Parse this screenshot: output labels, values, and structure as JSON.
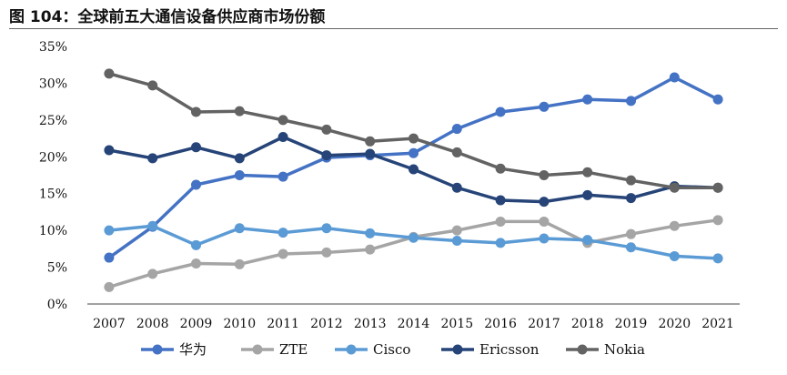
{
  "figure": {
    "title": "图 104：全球前五大通信设备供应商市场份额"
  },
  "chart_data": {
    "type": "line",
    "title": "",
    "xlabel": "",
    "ylabel": "",
    "categories": [
      "2007",
      "2008",
      "2009",
      "2010",
      "2011",
      "2012",
      "2013",
      "2014",
      "2015",
      "2016",
      "2017",
      "2018",
      "2019",
      "2020",
      "2021"
    ],
    "ylim": [
      0,
      35
    ],
    "y_ticks": [
      "0%",
      "5%",
      "10%",
      "15%",
      "20%",
      "25%",
      "30%",
      "35%"
    ],
    "y_tick_values": [
      0,
      5,
      10,
      15,
      20,
      25,
      30,
      35
    ],
    "grid": false,
    "legend_position": "bottom",
    "series": [
      {
        "name": "华为",
        "color": "#4472c4",
        "values": [
          6.3,
          10.5,
          16.2,
          17.5,
          17.3,
          19.9,
          20.2,
          20.5,
          23.8,
          26.1,
          26.8,
          27.8,
          27.6,
          30.8,
          27.8
        ]
      },
      {
        "name": "ZTE",
        "color": "#a5a5a5",
        "values": [
          2.3,
          4.1,
          5.5,
          5.4,
          6.8,
          7.0,
          7.4,
          9.1,
          10.0,
          11.2,
          11.2,
          8.3,
          9.5,
          10.6,
          11.4
        ]
      },
      {
        "name": "Cisco",
        "color": "#5b9bd5",
        "values": [
          10.0,
          10.6,
          8.0,
          10.3,
          9.7,
          10.3,
          9.6,
          9.0,
          8.6,
          8.3,
          8.9,
          8.7,
          7.7,
          6.5,
          6.2
        ]
      },
      {
        "name": "Ericsson",
        "color": "#264478",
        "values": [
          20.9,
          19.8,
          21.3,
          19.8,
          22.7,
          20.2,
          20.4,
          18.3,
          15.8,
          14.1,
          13.9,
          14.8,
          14.4,
          16.0,
          15.8
        ]
      },
      {
        "name": "Nokia",
        "color": "#636363",
        "values": [
          31.3,
          29.7,
          26.1,
          26.2,
          25.0,
          23.7,
          22.1,
          22.5,
          20.6,
          18.4,
          17.5,
          17.9,
          16.8,
          15.8,
          15.8
        ]
      }
    ]
  }
}
